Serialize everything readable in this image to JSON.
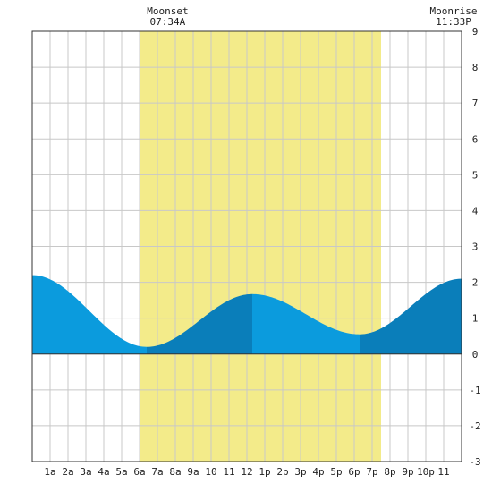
{
  "chart_data": {
    "type": "area",
    "title": "",
    "xlabel": "",
    "ylabel": "",
    "xlim": [
      0,
      24
    ],
    "ylim": [
      -3,
      9
    ],
    "grid": true,
    "x_ticks": [
      {
        "x": 1,
        "label": "1a"
      },
      {
        "x": 2,
        "label": "2a"
      },
      {
        "x": 3,
        "label": "3a"
      },
      {
        "x": 4,
        "label": "4a"
      },
      {
        "x": 5,
        "label": "5a"
      },
      {
        "x": 6,
        "label": "6a"
      },
      {
        "x": 7,
        "label": "7a"
      },
      {
        "x": 8,
        "label": "8a"
      },
      {
        "x": 9,
        "label": "9a"
      },
      {
        "x": 10,
        "label": "10"
      },
      {
        "x": 11,
        "label": "11"
      },
      {
        "x": 12,
        "label": "12"
      },
      {
        "x": 13,
        "label": "1p"
      },
      {
        "x": 14,
        "label": "2p"
      },
      {
        "x": 15,
        "label": "3p"
      },
      {
        "x": 16,
        "label": "4p"
      },
      {
        "x": 17,
        "label": "5p"
      },
      {
        "x": 18,
        "label": "6p"
      },
      {
        "x": 19,
        "label": "7p"
      },
      {
        "x": 20,
        "label": "8p"
      },
      {
        "x": 21,
        "label": "9p"
      },
      {
        "x": 22,
        "label": "10p"
      },
      {
        "x": 23,
        "label": "11"
      }
    ],
    "y_ticks": [
      9,
      8,
      7,
      6,
      5,
      4,
      3,
      2,
      1,
      0,
      -1,
      -2,
      -3
    ],
    "daylight": {
      "start": 6.0,
      "end": 19.5,
      "color": "#f3eb8a"
    },
    "tide_extrema": [
      {
        "x": 0.0,
        "y": 2.2
      },
      {
        "x": 6.4,
        "y": 0.2
      },
      {
        "x": 12.3,
        "y": 1.67
      },
      {
        "x": 18.3,
        "y": 0.55
      },
      {
        "x": 24.0,
        "y": 2.1
      }
    ],
    "colors": {
      "tide_light": "#0b9bdd",
      "tide_dark": "#0a7eba",
      "grid": "#c8c8c8",
      "axis": "#333333"
    },
    "annotations": [
      {
        "x": 7.57,
        "title": "Moonset",
        "time": "07:34A"
      },
      {
        "x": 23.55,
        "title": "Moonrise",
        "time": "11:33P"
      }
    ]
  }
}
